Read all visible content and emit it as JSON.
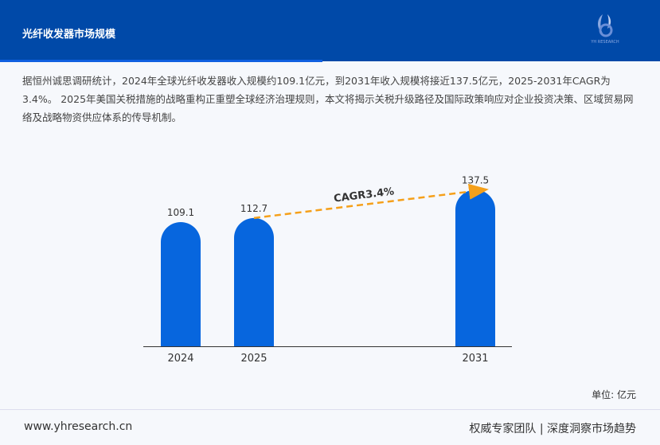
{
  "header": {
    "title": "光纤收发器市场规模",
    "logo_text": "YH RESEARCH"
  },
  "description": "据恒州诚思调研统计，2024年全球光纤收发器收入规模约109.1亿元，到2031年收入规模将接近137.5亿元，2025-2031年CAGR为3.4%。 2025年美国关税措施的战略重构正重塑全球经济治理规则，本文将揭示关税升级路径及国际政策响应对企业投资决策、区域贸易网络及战略物资供应体系的传导机制。",
  "chart_data": {
    "type": "bar",
    "categories": [
      "2024",
      "2025",
      "2031"
    ],
    "values": [
      109.1,
      112.7,
      137.5
    ],
    "data_labels": [
      "109.1",
      "112.7",
      "137.5"
    ],
    "annotation": "CAGR3.4%",
    "unit_label": "单位: 亿元",
    "bar_color": "#0766de",
    "arrow_color": "#f5a01a",
    "ylim": [
      0,
      140
    ],
    "grid": false
  },
  "footer": {
    "website": "www.yhresearch.cn",
    "slogan": "权威专家团队 | 深度洞察市场趋势"
  }
}
